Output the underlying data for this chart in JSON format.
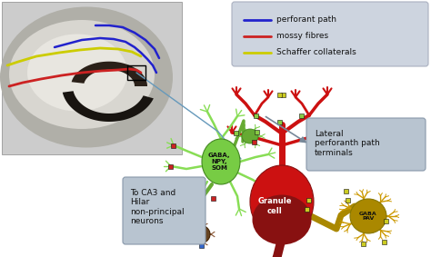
{
  "background_color": "#ffffff",
  "legend_items": [
    {
      "label": "perforant path",
      "color": "#2222cc"
    },
    {
      "label": "mossy fibres",
      "color": "#cc2222"
    },
    {
      "label": "Schaffer collaterals",
      "color": "#cccc00"
    }
  ],
  "legend_box_color": "#cdd4df",
  "annotation_lateral_text": "Lateral\nperforanth path\nterminals",
  "annotation_ca3_text": "To CA3 and\nHilar\nnon-principal\nneurons",
  "annotation_box_color": "#b8c4d0",
  "granule_label_text": "Granule\ncell",
  "interneuron_label_text": "GABA,\nNPY,\nSOM",
  "gaba_pv_text": "GABA\nPAV",
  "syn_green": "#88cc44",
  "syn_red": "#cc2222",
  "syn_blue": "#3366cc",
  "syn_yellow": "#cccc22",
  "granule_color": "#cc1111",
  "granule_dark": "#881111",
  "granule_body_color": "#bb1111",
  "interneuron_color": "#66bb33",
  "axon_color": "#551100",
  "golden_color": "#aa8800",
  "golden_dark": "#887700"
}
